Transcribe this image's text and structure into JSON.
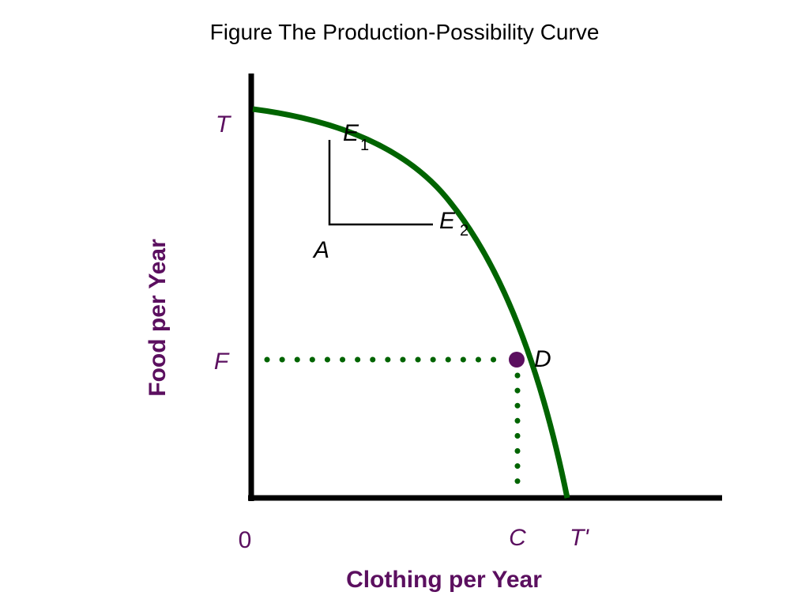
{
  "title": "Figure The Production-Possibility Curve",
  "colors": {
    "curve": "#006400",
    "label": "#5b0f5f",
    "axis": "#000000",
    "point": "#5b0f5f"
  },
  "chart_data": {
    "type": "line",
    "title": "Figure The Production-Possibility Curve",
    "xlabel": "Clothing per Year",
    "ylabel": "Food per Year",
    "axis_labels": {
      "origin": "0",
      "x_markers": [
        "C",
        "T'"
      ],
      "y_markers": [
        "T",
        "F"
      ]
    },
    "points": {
      "E1": {
        "main": "E",
        "sub": "1"
      },
      "E2": {
        "main": "E",
        "sub": "2"
      },
      "A": {
        "main": "A"
      },
      "D": {
        "main": "D"
      }
    },
    "grid": false,
    "legend": "none"
  }
}
